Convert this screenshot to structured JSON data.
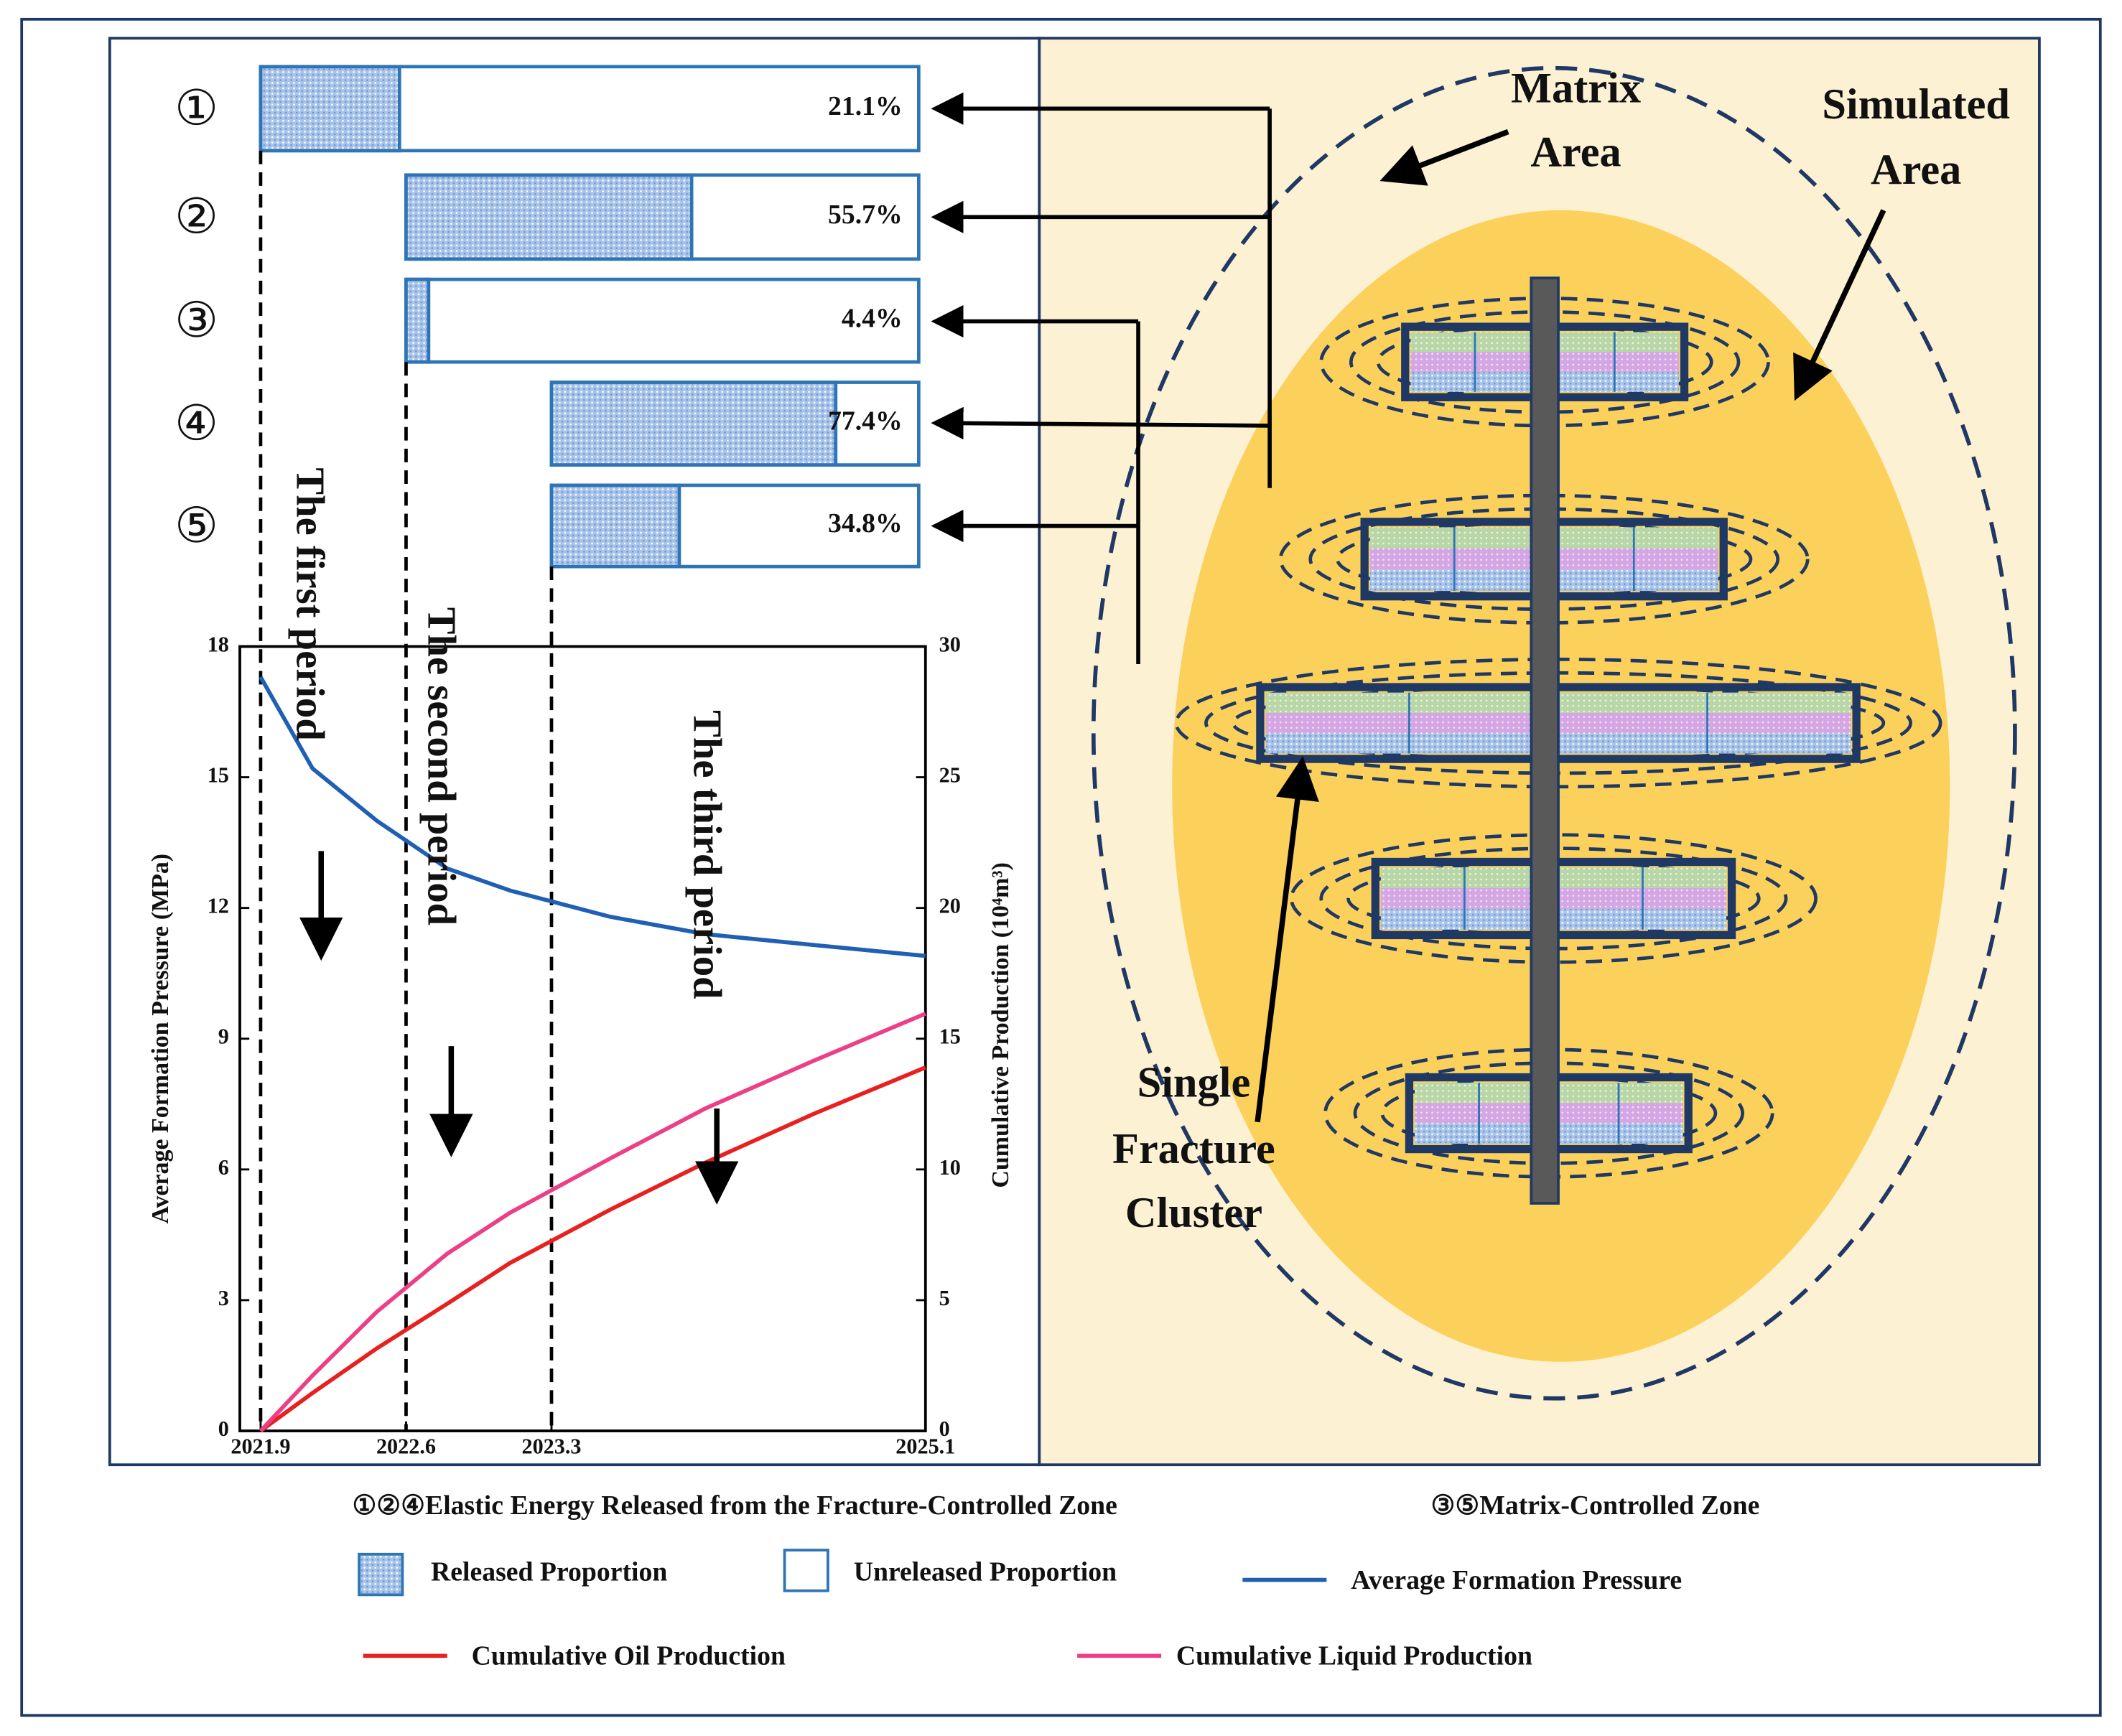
{
  "chart_data": [
    {
      "type": "bar",
      "orientation": "horizontal",
      "categories": [
        "①",
        "②",
        "③",
        "④",
        "⑤"
      ],
      "series": [
        {
          "name": "Released Proportion",
          "color": "#a9c4ea",
          "values": [
            21.1,
            55.7,
            4.4,
            77.4,
            34.8
          ],
          "value_labels": [
            "21.1%",
            "55.7%",
            "4.4%",
            "77.4%",
            "34.8%"
          ]
        }
      ],
      "xlim": [
        0,
        100
      ]
    },
    {
      "type": "line",
      "x": [
        2021.9,
        2022.15,
        2022.46,
        2022.8,
        2023.1,
        2023.58,
        2024.04,
        2024.56,
        2025.1
      ],
      "series": [
        {
          "name": "Average Formation Pressure",
          "color": "#1f5fb4",
          "axis": "y",
          "values": [
            17.3,
            15.2,
            14.0,
            12.9,
            12.4,
            11.8,
            11.4,
            11.15,
            10.9
          ]
        },
        {
          "name": "Cumulative Oil Production",
          "color": "#e8201f",
          "axis": "y2",
          "values": [
            0,
            1.45,
            3.16,
            4.87,
            6.42,
            8.45,
            10.26,
            12.12,
            13.9
          ]
        },
        {
          "name": "Cumulative Liquid Production",
          "color": "#ec3f86",
          "axis": "y2",
          "values": [
            0,
            2.12,
            4.56,
            6.79,
            8.34,
            10.41,
            12.33,
            14.15,
            15.96
          ]
        }
      ],
      "xlim": [
        2021.8,
        2025.1
      ],
      "xticks": [
        2021.9,
        2022.6,
        2023.3,
        2025.1
      ],
      "ylim": [
        0,
        18
      ],
      "yticks": [
        0,
        3,
        6,
        9,
        12,
        15,
        18
      ],
      "y2lim": [
        0,
        30
      ],
      "y2ticks": [
        0,
        5,
        10,
        15,
        20,
        25,
        30
      ],
      "y_label": "Average Formation Pressure (MPa)",
      "y2_label": "Cumulative Production (10⁴m³)",
      "annotations": [
        "The first period",
        "The second period",
        "The third period"
      ],
      "grid": false
    }
  ],
  "diagram": {
    "matrix_area": [
      "Matrix",
      "Area"
    ],
    "simulated_area": [
      "Simulated",
      "Area"
    ],
    "fracture_cluster": [
      "Single",
      "Fracture",
      "Cluster"
    ]
  },
  "legend": {
    "fracture_zone": "①②④Elastic Energy Released from the Fracture-Controlled Zone",
    "matrix_zone": "③⑤Matrix-Controlled Zone",
    "unreleased": "Unreleased Proportion"
  }
}
